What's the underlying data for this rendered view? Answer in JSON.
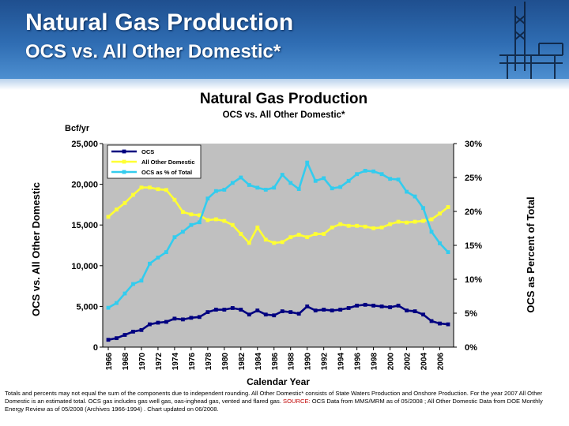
{
  "slide": {
    "title": "Natural Gas Production",
    "subtitle": "OCS vs. All Other Domestic*"
  },
  "footnote": {
    "text": "Totals and percents may not equal the sum of the components due to independent rounding.  All Other Domestic* consists of State Waters Production and Onshore Production.  For the year 2007 All Other Domestic is an estimated total.  OCS gas includes gas well gas, oas-inghead gas, vented and flared gas.  ",
    "source_label": "SOURCE:",
    "source_text": "  OCS Data from MMS/MRM as of 05/2008 ;  All Other Domestic Data from DOE Monthly Energy Review as of 05/2008 (Archives 1966-1994) .  Chart updated on 06/2008."
  },
  "colors": {
    "banner": "#2f6db3",
    "plot_bg": "#c0c0c0",
    "ocs": "#000080",
    "other": "#ffff33",
    "pct": "#33ccee"
  },
  "chart_data": {
    "type": "line",
    "title": "Natural Gas Production",
    "subtitle": "OCS vs. All Other Domestic*",
    "xlabel": "Calendar Year",
    "ylabel": "OCS vs. All Other Domestic",
    "ylabel_right": "OCS as Percent of Total",
    "y_unit_label": "Bcf/yr",
    "x": [
      1966,
      1967,
      1968,
      1969,
      1970,
      1971,
      1972,
      1973,
      1974,
      1975,
      1976,
      1977,
      1978,
      1979,
      1980,
      1981,
      1982,
      1983,
      1984,
      1985,
      1986,
      1987,
      1988,
      1989,
      1990,
      1991,
      1992,
      1993,
      1994,
      1995,
      1996,
      1997,
      1998,
      1999,
      2000,
      2001,
      2002,
      2003,
      2004,
      2005,
      2006,
      2007
    ],
    "xticks": [
      "1966",
      "1968",
      "1970",
      "1972",
      "1974",
      "1976",
      "1978",
      "1980",
      "1982",
      "1984",
      "1986",
      "1988",
      "1990",
      "1992",
      "1994",
      "1996",
      "1998",
      "2000",
      "2002",
      "2004",
      "2006"
    ],
    "ylim": [
      0,
      25000
    ],
    "yticks": [
      "0",
      "5,000",
      "10,000",
      "15,000",
      "20,000",
      "25,000"
    ],
    "ylim_right": [
      0,
      30
    ],
    "yticks_right": [
      "0%",
      "5%",
      "10%",
      "15%",
      "20%",
      "25%",
      "30%"
    ],
    "grid": false,
    "legend_position": "top-left",
    "series": [
      {
        "name": "OCS",
        "axis": "left",
        "color": "#000080",
        "values": [
          900,
          1100,
          1500,
          1900,
          2100,
          2800,
          3000,
          3100,
          3500,
          3400,
          3600,
          3700,
          4300,
          4600,
          4600,
          4800,
          4600,
          4000,
          4500,
          4000,
          3900,
          4400,
          4300,
          4100,
          5000,
          4500,
          4600,
          4500,
          4600,
          4800,
          5100,
          5200,
          5100,
          5000,
          4900,
          5100,
          4500,
          4400,
          4000,
          3200,
          2900,
          2800
        ]
      },
      {
        "name": "All Other Domestic",
        "axis": "left",
        "color": "#ffff33",
        "values": [
          16000,
          16900,
          17700,
          18700,
          19600,
          19600,
          19400,
          19300,
          18100,
          16600,
          16300,
          16200,
          15600,
          15700,
          15500,
          15000,
          13900,
          12800,
          14700,
          13200,
          12800,
          12900,
          13500,
          13800,
          13500,
          13900,
          13900,
          14700,
          15100,
          14900,
          14900,
          14800,
          14600,
          14700,
          15100,
          15400,
          15300,
          15400,
          15500,
          15700,
          16400,
          17200
        ]
      },
      {
        "name": "OCS as % of Total",
        "axis": "right",
        "color": "#33ccee",
        "values": [
          5.8,
          6.5,
          7.9,
          9.3,
          9.8,
          12.3,
          13.2,
          14.0,
          16.2,
          17.0,
          18.0,
          18.4,
          21.9,
          23.0,
          23.2,
          24.2,
          25.0,
          23.9,
          23.5,
          23.2,
          23.5,
          25.4,
          24.2,
          23.3,
          27.2,
          24.5,
          24.9,
          23.4,
          23.6,
          24.5,
          25.5,
          26.0,
          25.9,
          25.5,
          24.8,
          24.7,
          22.9,
          22.2,
          20.5,
          17.0,
          15.3,
          14.0
        ]
      }
    ]
  }
}
